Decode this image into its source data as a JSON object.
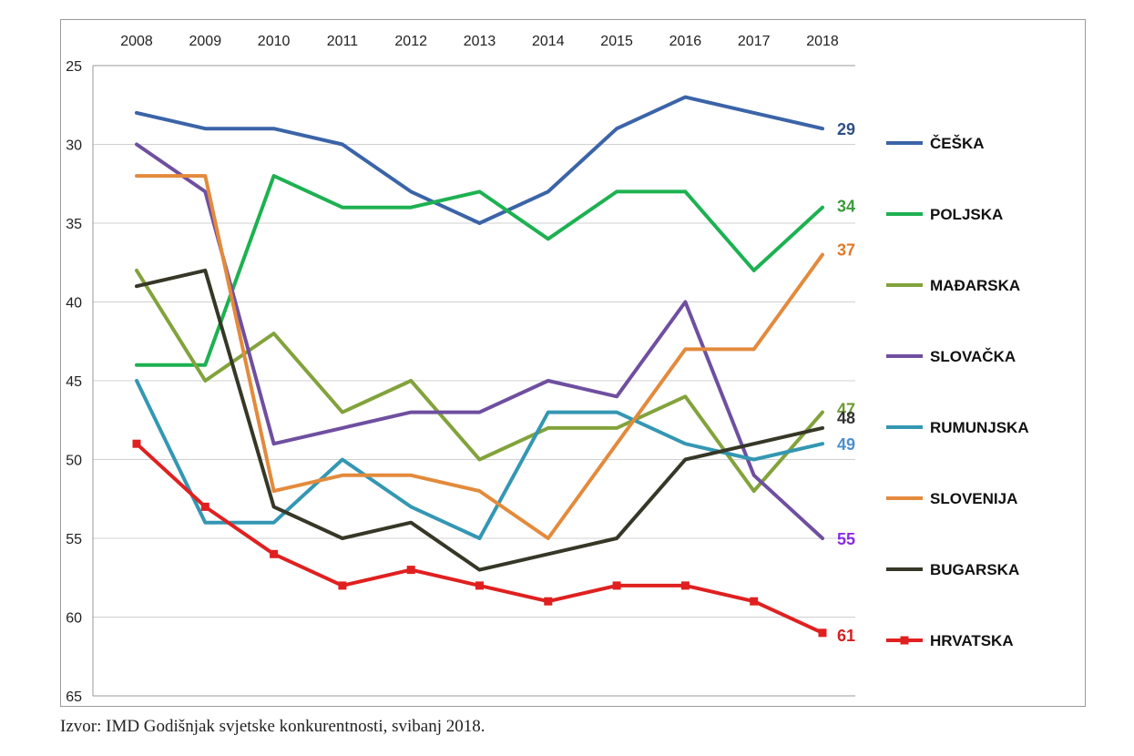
{
  "chart_data": {
    "type": "line",
    "y_axis_inverted": true,
    "ylim": [
      25,
      65
    ],
    "y_ticks": [
      "25",
      "30",
      "35",
      "40",
      "45",
      "50",
      "55",
      "60",
      "65"
    ],
    "x": [
      "2008",
      "2009",
      "2010",
      "2011",
      "2012",
      "2013",
      "2014",
      "2015",
      "2016",
      "2017",
      "2018"
    ],
    "grid": "horizontal",
    "legend_position": "right",
    "series": [
      {
        "name": "ČEŠKA",
        "color": "#3b64a8",
        "end_label": "29",
        "label_color": "#2e4f86",
        "values": [
          28,
          29,
          29,
          30,
          33,
          35,
          33,
          29,
          27,
          28,
          29
        ]
      },
      {
        "name": "POLJSKA",
        "color": "#1db151",
        "end_label": "34",
        "label_color": "#3c9a3c",
        "values": [
          44,
          44,
          32,
          34,
          34,
          33,
          36,
          33,
          33,
          38,
          34
        ]
      },
      {
        "name": "MAĐARSKA",
        "color": "#82a33c",
        "end_label": "47",
        "label_color": "#6e9a30",
        "values": [
          38,
          45,
          42,
          47,
          45,
          50,
          48,
          48,
          46,
          52,
          47
        ]
      },
      {
        "name": "SLOVAČKA",
        "color": "#6f4fa0",
        "end_label": "55",
        "label_color": "#8a2be2",
        "values": [
          30,
          33,
          49,
          48,
          47,
          47,
          45,
          46,
          40,
          51,
          55
        ]
      },
      {
        "name": "RUMUNJSKA",
        "color": "#3497b3",
        "end_label": "49",
        "label_color": "#4a8fd0",
        "values": [
          45,
          54,
          54,
          50,
          53,
          55,
          47,
          47,
          49,
          50,
          49
        ]
      },
      {
        "name": "SLOVENIJA",
        "color": "#e38a3c",
        "end_label": "37",
        "label_color": "#e07a2a",
        "values": [
          32,
          32,
          52,
          51,
          51,
          52,
          55,
          49,
          43,
          43,
          37
        ]
      },
      {
        "name": "BUGARSKA",
        "color": "#373727",
        "end_label": "48",
        "label_color": "#333333",
        "values": [
          39,
          38,
          53,
          55,
          54,
          57,
          56,
          55,
          50,
          49,
          48
        ]
      },
      {
        "name": "HRVATSKA",
        "color": "#e02020",
        "end_label": "61",
        "label_color": "#d42020",
        "markers": true,
        "values": [
          49,
          53,
          56,
          58,
          57,
          58,
          59,
          58,
          58,
          59,
          61
        ]
      }
    ]
  },
  "source": "Izvor: IMD Godišnjak svjetske konkurentnosti, svibanj 2018."
}
